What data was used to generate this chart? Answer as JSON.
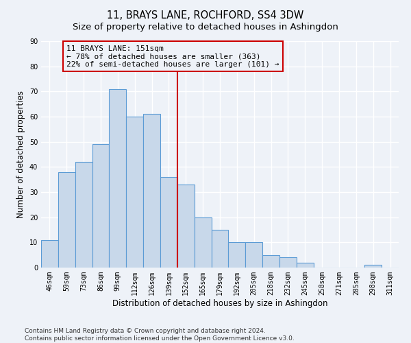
{
  "title": "11, BRAYS LANE, ROCHFORD, SS4 3DW",
  "subtitle": "Size of property relative to detached houses in Ashingdon",
  "xlabel": "Distribution of detached houses by size in Ashingdon",
  "ylabel": "Number of detached properties",
  "bar_labels": [
    "46sqm",
    "59sqm",
    "73sqm",
    "86sqm",
    "99sqm",
    "112sqm",
    "126sqm",
    "139sqm",
    "152sqm",
    "165sqm",
    "179sqm",
    "192sqm",
    "205sqm",
    "218sqm",
    "232sqm",
    "245sqm",
    "258sqm",
    "271sqm",
    "285sqm",
    "298sqm",
    "311sqm"
  ],
  "bar_values": [
    11,
    38,
    42,
    49,
    71,
    60,
    61,
    36,
    33,
    20,
    15,
    10,
    10,
    5,
    4,
    2,
    0,
    0,
    0,
    1,
    0
  ],
  "bar_color": "#c8d8ea",
  "bar_edge_color": "#5b9bd5",
  "vline_x_idx": 8,
  "vline_color": "#cc0000",
  "annotation_line1": "11 BRAYS LANE: 151sqm",
  "annotation_line2": "← 78% of detached houses are smaller (363)",
  "annotation_line3": "22% of semi-detached houses are larger (101) →",
  "annotation_box_color": "#cc0000",
  "ylim": [
    0,
    90
  ],
  "yticks": [
    0,
    10,
    20,
    30,
    40,
    50,
    60,
    70,
    80,
    90
  ],
  "footnote": "Contains HM Land Registry data © Crown copyright and database right 2024.\nContains public sector information licensed under the Open Government Licence v3.0.",
  "background_color": "#eef2f8",
  "grid_color": "#ffffff",
  "title_fontsize": 10.5,
  "subtitle_fontsize": 9.5,
  "axis_label_fontsize": 8.5,
  "tick_fontsize": 7,
  "annotation_fontsize": 8,
  "footnote_fontsize": 6.5
}
